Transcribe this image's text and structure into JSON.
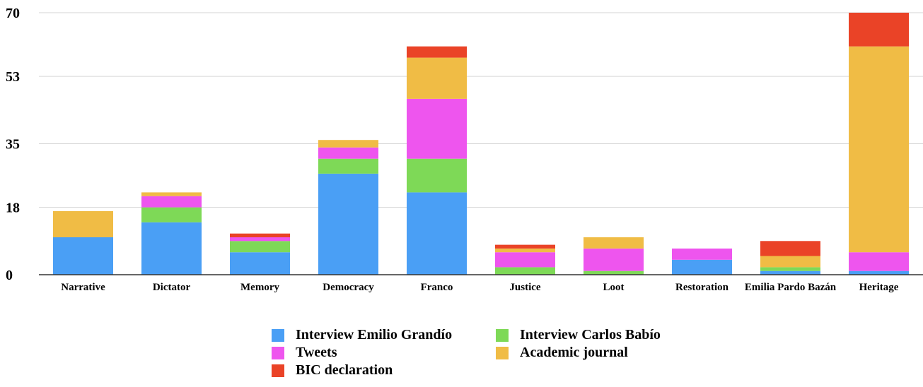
{
  "chart_data": {
    "type": "bar",
    "stacked": true,
    "categories": [
      "Narrative",
      "Dictator",
      "Memory",
      "Democracy",
      "Franco",
      "Justice",
      "Loot",
      "Restoration",
      "Emilia Pardo Bazán",
      "Heritage"
    ],
    "yticks": [
      "0",
      "18",
      "35",
      "53",
      "70"
    ],
    "ylim": [
      0,
      70
    ],
    "grid": true,
    "legend_position": "bottom",
    "series": [
      {
        "name": "Interview Emilio Grandío",
        "color": "#4A9FF5",
        "values": [
          10,
          14,
          6,
          27,
          22,
          0,
          0,
          4,
          1,
          1
        ]
      },
      {
        "name": "Interview Carlos Babío",
        "color": "#7ED957",
        "values": [
          0,
          4,
          3,
          4,
          9,
          2,
          1,
          0,
          1,
          0
        ]
      },
      {
        "name": "Tweets",
        "color": "#EE55EE",
        "values": [
          0,
          3,
          1,
          3,
          16,
          4,
          6,
          3,
          0,
          5
        ]
      },
      {
        "name": "Academic journal",
        "color": "#F0BC45",
        "values": [
          7,
          1,
          0,
          2,
          11,
          1,
          3,
          0,
          3,
          55
        ]
      },
      {
        "name": "BIC declaration",
        "color": "#EA4327",
        "values": [
          0,
          0,
          1,
          0,
          3,
          1,
          0,
          0,
          4,
          9
        ]
      }
    ],
    "legend_order": [
      0,
      1,
      2,
      3,
      4
    ]
  }
}
